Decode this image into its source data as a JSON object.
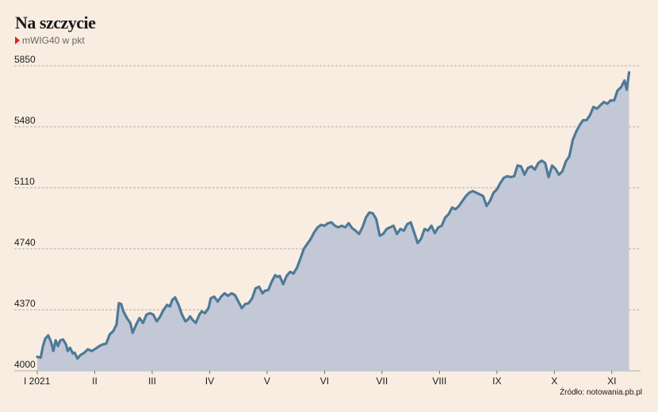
{
  "title": "Na szczycie",
  "subtitle": "mWIG40 w pkt",
  "source": "Źródło: notowania.pb.pl",
  "colors": {
    "background": "#f9ede1",
    "line": "#4e7a98",
    "area": "#c2c8d6",
    "grid": "#9a9a9a",
    "marker": "#e2231a"
  },
  "chart_data": {
    "type": "area",
    "title": "Na szczycie",
    "subtitle": "mWIG40 w pkt",
    "xlabel": "",
    "ylabel": "",
    "ylim": [
      4000,
      5850
    ],
    "yticks": [
      4000,
      4370,
      4740,
      5110,
      5480,
      5850
    ],
    "grid": "horizontal dashed",
    "x_range_months": [
      0,
      10.5
    ],
    "xticks": [
      {
        "label": "I 2021",
        "month": 0
      },
      {
        "label": "II",
        "month": 1
      },
      {
        "label": "III",
        "month": 2
      },
      {
        "label": "IV",
        "month": 3
      },
      {
        "label": "V",
        "month": 4
      },
      {
        "label": "VI",
        "month": 5
      },
      {
        "label": "VII",
        "month": 6
      },
      {
        "label": "VIII",
        "month": 7
      },
      {
        "label": "IX",
        "month": 8
      },
      {
        "label": "X",
        "month": 9
      },
      {
        "label": "XI",
        "month": 10
      }
    ],
    "series": [
      {
        "name": "",
        "points": [
          [
            0.0,
            4085
          ],
          [
            0.06,
            4080
          ],
          [
            0.1,
            4150
          ],
          [
            0.14,
            4195
          ],
          [
            0.19,
            4215
          ],
          [
            0.24,
            4175
          ],
          [
            0.28,
            4120
          ],
          [
            0.32,
            4185
          ],
          [
            0.36,
            4150
          ],
          [
            0.4,
            4185
          ],
          [
            0.45,
            4190
          ],
          [
            0.5,
            4160
          ],
          [
            0.53,
            4120
          ],
          [
            0.57,
            4140
          ],
          [
            0.62,
            4105
          ],
          [
            0.65,
            4110
          ],
          [
            0.7,
            4075
          ],
          [
            0.75,
            4095
          ],
          [
            0.82,
            4110
          ],
          [
            0.88,
            4130
          ],
          [
            0.95,
            4120
          ],
          [
            1.02,
            4135
          ],
          [
            1.08,
            4150
          ],
          [
            1.14,
            4160
          ],
          [
            1.2,
            4165
          ],
          [
            1.26,
            4220
          ],
          [
            1.32,
            4240
          ],
          [
            1.38,
            4280
          ],
          [
            1.42,
            4410
          ],
          [
            1.46,
            4405
          ],
          [
            1.5,
            4360
          ],
          [
            1.56,
            4320
          ],
          [
            1.62,
            4290
          ],
          [
            1.66,
            4230
          ],
          [
            1.72,
            4280
          ],
          [
            1.78,
            4320
          ],
          [
            1.84,
            4290
          ],
          [
            1.9,
            4340
          ],
          [
            1.96,
            4350
          ],
          [
            2.02,
            4340
          ],
          [
            2.08,
            4300
          ],
          [
            2.14,
            4330
          ],
          [
            2.2,
            4370
          ],
          [
            2.26,
            4400
          ],
          [
            2.31,
            4390
          ],
          [
            2.35,
            4430
          ],
          [
            2.4,
            4445
          ],
          [
            2.46,
            4400
          ],
          [
            2.52,
            4340
          ],
          [
            2.58,
            4300
          ],
          [
            2.62,
            4310
          ],
          [
            2.66,
            4330
          ],
          [
            2.7,
            4310
          ],
          [
            2.76,
            4290
          ],
          [
            2.82,
            4340
          ],
          [
            2.86,
            4360
          ],
          [
            2.92,
            4350
          ],
          [
            2.98,
            4380
          ],
          [
            3.02,
            4440
          ],
          [
            3.08,
            4450
          ],
          [
            3.14,
            4420
          ],
          [
            3.2,
            4450
          ],
          [
            3.26,
            4470
          ],
          [
            3.32,
            4455
          ],
          [
            3.38,
            4470
          ],
          [
            3.44,
            4460
          ],
          [
            3.5,
            4420
          ],
          [
            3.56,
            4380
          ],
          [
            3.62,
            4405
          ],
          [
            3.68,
            4410
          ],
          [
            3.74,
            4440
          ],
          [
            3.8,
            4500
          ],
          [
            3.86,
            4510
          ],
          [
            3.92,
            4470
          ],
          [
            3.96,
            4485
          ],
          [
            4.02,
            4490
          ],
          [
            4.08,
            4540
          ],
          [
            4.14,
            4580
          ],
          [
            4.18,
            4570
          ],
          [
            4.22,
            4575
          ],
          [
            4.28,
            4525
          ],
          [
            4.34,
            4575
          ],
          [
            4.4,
            4600
          ],
          [
            4.46,
            4590
          ],
          [
            4.52,
            4625
          ],
          [
            4.58,
            4680
          ],
          [
            4.64,
            4740
          ],
          [
            4.7,
            4770
          ],
          [
            4.76,
            4800
          ],
          [
            4.82,
            4840
          ],
          [
            4.88,
            4870
          ],
          [
            4.94,
            4885
          ],
          [
            5.0,
            4880
          ],
          [
            5.06,
            4895
          ],
          [
            5.12,
            4900
          ],
          [
            5.18,
            4880
          ],
          [
            5.24,
            4870
          ],
          [
            5.3,
            4880
          ],
          [
            5.36,
            4870
          ],
          [
            5.42,
            4895
          ],
          [
            5.48,
            4865
          ],
          [
            5.54,
            4850
          ],
          [
            5.6,
            4830
          ],
          [
            5.66,
            4870
          ],
          [
            5.72,
            4930
          ],
          [
            5.78,
            4960
          ],
          [
            5.84,
            4955
          ],
          [
            5.9,
            4920
          ],
          [
            5.96,
            4820
          ],
          [
            6.02,
            4830
          ],
          [
            6.08,
            4860
          ],
          [
            6.14,
            4870
          ],
          [
            6.2,
            4880
          ],
          [
            6.26,
            4830
          ],
          [
            6.32,
            4860
          ],
          [
            6.38,
            4850
          ],
          [
            6.44,
            4890
          ],
          [
            6.5,
            4900
          ],
          [
            6.56,
            4840
          ],
          [
            6.62,
            4775
          ],
          [
            6.68,
            4800
          ],
          [
            6.74,
            4860
          ],
          [
            6.8,
            4850
          ],
          [
            6.86,
            4880
          ],
          [
            6.92,
            4835
          ],
          [
            6.98,
            4870
          ],
          [
            7.04,
            4880
          ],
          [
            7.1,
            4930
          ],
          [
            7.16,
            4950
          ],
          [
            7.22,
            4990
          ],
          [
            7.28,
            4980
          ],
          [
            7.34,
            5000
          ],
          [
            7.4,
            5030
          ],
          [
            7.46,
            5060
          ],
          [
            7.52,
            5080
          ],
          [
            7.58,
            5090
          ],
          [
            7.64,
            5080
          ],
          [
            7.7,
            5070
          ],
          [
            7.76,
            5060
          ],
          [
            7.82,
            5000
          ],
          [
            7.88,
            5030
          ],
          [
            7.94,
            5080
          ],
          [
            8.0,
            5100
          ],
          [
            8.06,
            5140
          ],
          [
            8.12,
            5170
          ],
          [
            8.18,
            5180
          ],
          [
            8.24,
            5175
          ],
          [
            8.3,
            5180
          ],
          [
            8.36,
            5245
          ],
          [
            8.42,
            5240
          ],
          [
            8.48,
            5190
          ],
          [
            8.54,
            5230
          ],
          [
            8.6,
            5240
          ],
          [
            8.66,
            5220
          ],
          [
            8.72,
            5260
          ],
          [
            8.78,
            5275
          ],
          [
            8.84,
            5260
          ],
          [
            8.9,
            5175
          ],
          [
            8.96,
            5245
          ],
          [
            9.02,
            5225
          ],
          [
            9.08,
            5190
          ],
          [
            9.14,
            5210
          ],
          [
            9.2,
            5270
          ],
          [
            9.26,
            5300
          ],
          [
            9.32,
            5400
          ],
          [
            9.38,
            5450
          ],
          [
            9.44,
            5490
          ],
          [
            9.5,
            5520
          ],
          [
            9.56,
            5520
          ],
          [
            9.62,
            5550
          ],
          [
            9.68,
            5600
          ],
          [
            9.74,
            5590
          ],
          [
            9.8,
            5610
          ],
          [
            9.86,
            5630
          ],
          [
            9.92,
            5620
          ],
          [
            9.98,
            5640
          ],
          [
            10.04,
            5640
          ],
          [
            10.1,
            5700
          ],
          [
            10.16,
            5720
          ],
          [
            10.22,
            5760
          ],
          [
            10.26,
            5705
          ],
          [
            10.3,
            5810
          ]
        ]
      }
    ]
  }
}
